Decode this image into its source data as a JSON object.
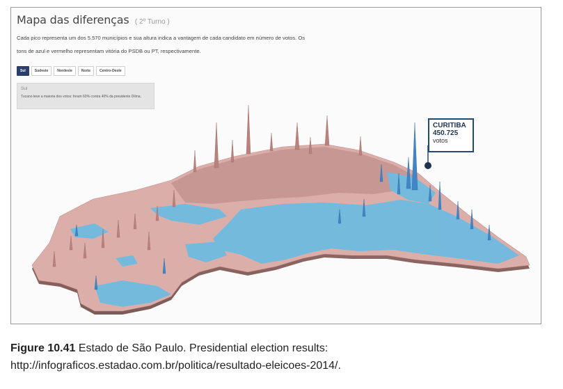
{
  "header": {
    "title": "Mapa das diferenças",
    "subtitle": "( 2º Turno )",
    "description": "Cada pico representa um dos 5.570 municípios e sua altura indica a vantagem de cada candidato em número de votos. Os tons de azul e vermelho representam vitória do PSDB ou PT, respectivamente."
  },
  "tabs": [
    {
      "label": "Sul",
      "active": true
    },
    {
      "label": "Sudeste",
      "active": false
    },
    {
      "label": "Nordeste",
      "active": false
    },
    {
      "label": "Norte",
      "active": false
    },
    {
      "label": "Centro-Oeste",
      "active": false
    }
  ],
  "info_box": {
    "region": "Sul",
    "text": "Tucano teve a maioria dos votos: foram 60% contra 40% da presidente Dilma."
  },
  "callout": {
    "city": "CURITIBA",
    "value": "450.725",
    "unit": "votos"
  },
  "colors": {
    "pt_red": "#d9a9a4",
    "psdb_blue": "#6cb8de",
    "callout_border": "#234a6e",
    "active_tab": "#2a3e6b"
  },
  "caption": {
    "figure_label": "Figure 10.41",
    "text": "Estado de São Paulo. Presidential election results:",
    "url": "http://infograficos.estadao.com.br/politica/resultado-eleicoes-2014/."
  }
}
